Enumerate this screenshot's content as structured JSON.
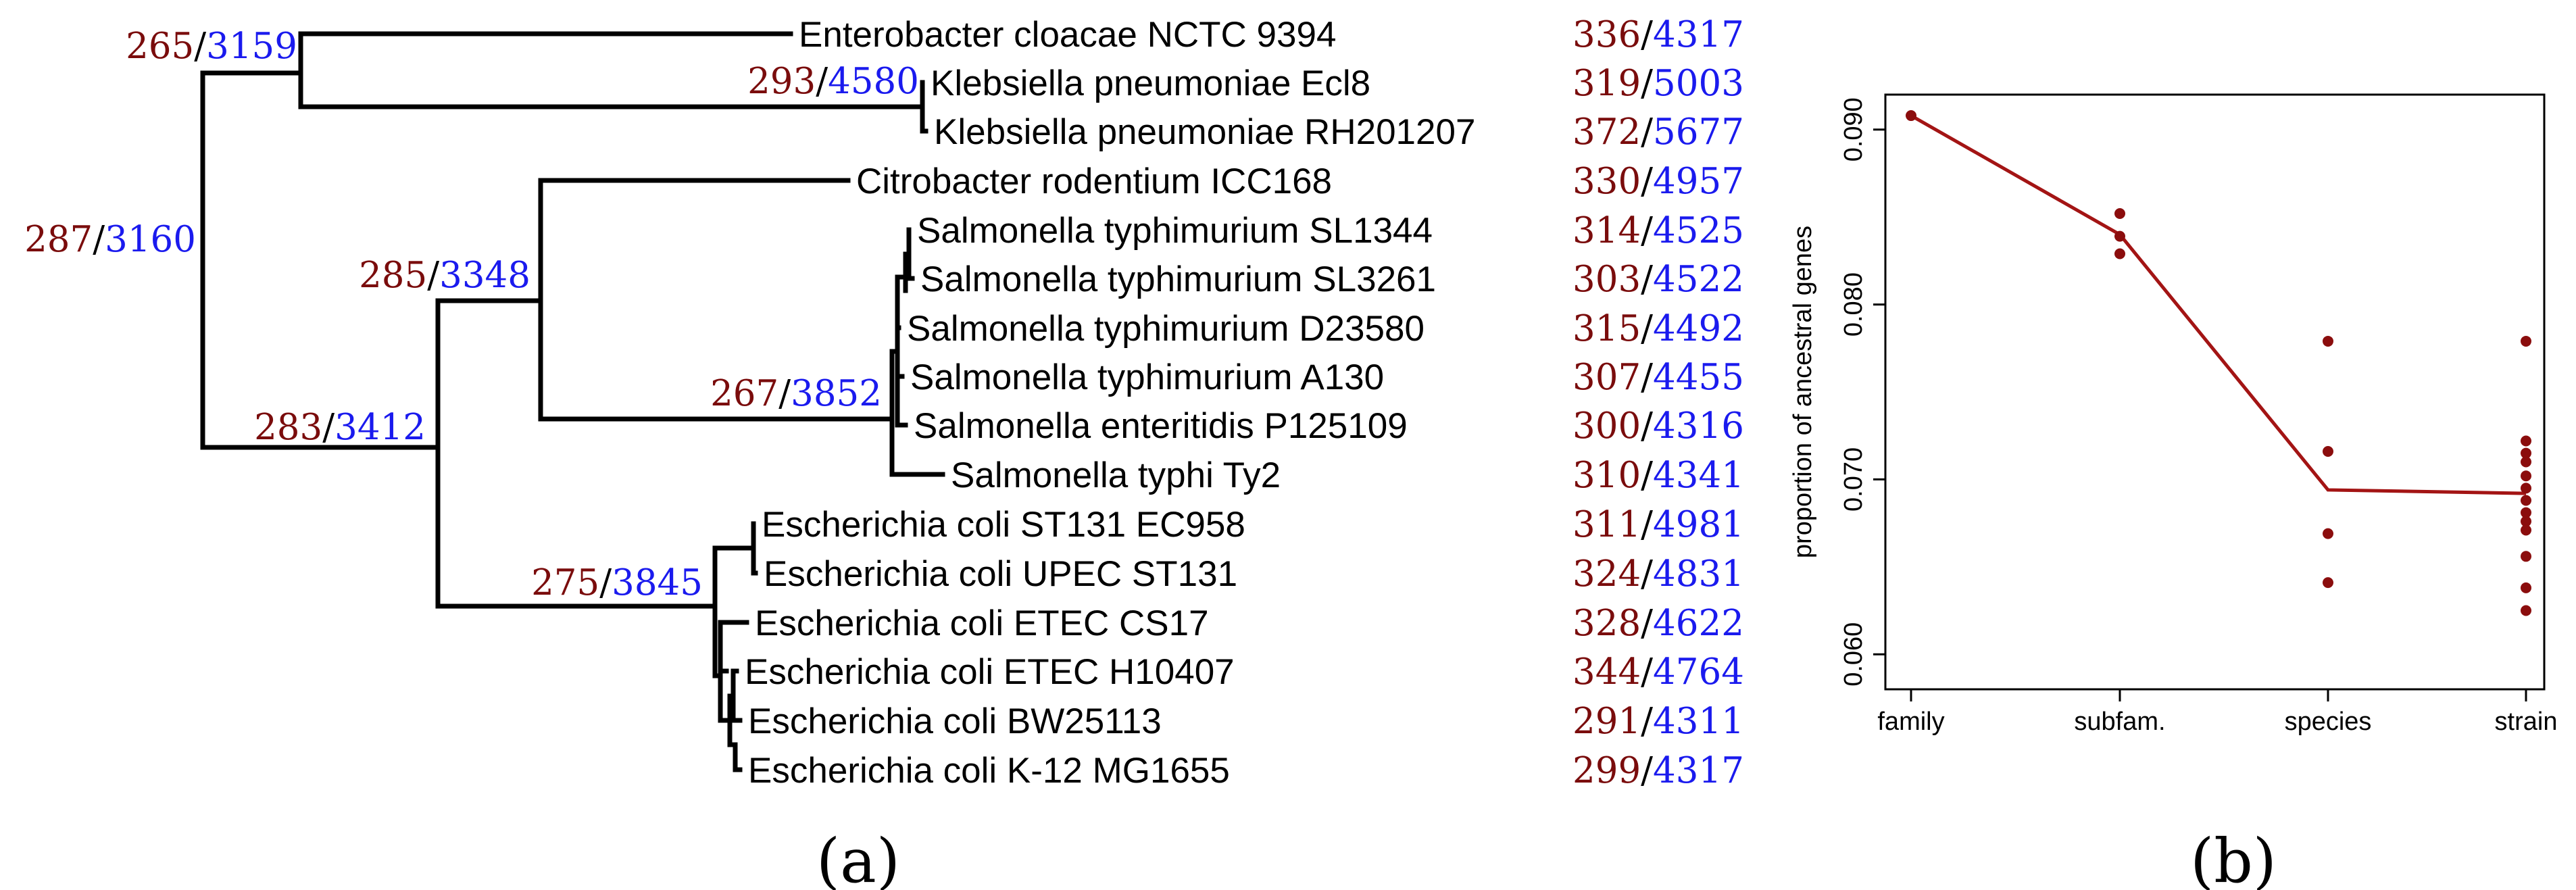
{
  "colors": {
    "ancestral": "#7a0c0c",
    "total": "#1a1aee",
    "line": "#a31414",
    "point": "#8b0d0d"
  },
  "panel_labels": {
    "a": "(a)",
    "b": "(b)"
  },
  "tree": {
    "leaves": [
      {
        "name": "Enterobacter cloacae NCTC 9394",
        "a": "336",
        "t": "4317"
      },
      {
        "name": "Klebsiella pneumoniae Ecl8",
        "a": "319",
        "t": "5003"
      },
      {
        "name": "Klebsiella pneumoniae RH201207",
        "a": "372",
        "t": "5677"
      },
      {
        "name": "Citrobacter rodentium ICC168",
        "a": "330",
        "t": "4957"
      },
      {
        "name": "Salmonella typhimurium SL1344",
        "a": "314",
        "t": "4525"
      },
      {
        "name": "Salmonella typhimurium SL3261",
        "a": "303",
        "t": "4522"
      },
      {
        "name": "Salmonella typhimurium D23580",
        "a": "315",
        "t": "4492"
      },
      {
        "name": "Salmonella typhimurium A130",
        "a": "307",
        "t": "4455"
      },
      {
        "name": "Salmonella enteritidis P125109",
        "a": "300",
        "t": "4316"
      },
      {
        "name": "Salmonella typhi Ty2",
        "a": "310",
        "t": "4341"
      },
      {
        "name": "Escherichia coli ST131 EC958",
        "a": "311",
        "t": "4981"
      },
      {
        "name": "Escherichia coli UPEC ST131",
        "a": "324",
        "t": "4831"
      },
      {
        "name": "Escherichia coli ETEC CS17",
        "a": "328",
        "t": "4622"
      },
      {
        "name": "Escherichia coli ETEC H10407",
        "a": "344",
        "t": "4764"
      },
      {
        "name": "Escherichia coli BW25113",
        "a": "291",
        "t": "4311"
      },
      {
        "name": "Escherichia coli K-12 MG1655",
        "a": "299",
        "t": "4317"
      }
    ],
    "internal_labels": [
      {
        "a": "287",
        "t": "3160"
      },
      {
        "a": "265",
        "t": "3159"
      },
      {
        "a": "293",
        "t": "4580"
      },
      {
        "a": "283",
        "t": "3412"
      },
      {
        "a": "285",
        "t": "3348"
      },
      {
        "a": "267",
        "t": "3852"
      },
      {
        "a": "275",
        "t": "3845"
      }
    ]
  },
  "chart_data": {
    "type": "scatter",
    "title": "",
    "xlabel": "",
    "ylabel": "proportion of ancestral genes",
    "categories": [
      "family",
      "subfam.",
      "species",
      "strain"
    ],
    "ylim": [
      0.058,
      0.092
    ],
    "yticks": [
      "0.060",
      "0.070",
      "0.080",
      "0.090"
    ],
    "ytick_values": [
      0.06,
      0.07,
      0.08,
      0.09
    ],
    "grid": false,
    "points": [
      {
        "category": "family",
        "values": [
          0.0908
        ]
      },
      {
        "category": "subfam.",
        "values": [
          0.0852,
          0.0839,
          0.0829
        ]
      },
      {
        "category": "species",
        "values": [
          0.0779,
          0.0716,
          0.0669,
          0.0641
        ]
      },
      {
        "category": "strain",
        "values": [
          0.0779,
          0.0722,
          0.0715,
          0.071,
          0.0702,
          0.0695,
          0.0688,
          0.0681,
          0.0676,
          0.0671,
          0.0656,
          0.0638,
          0.0625
        ]
      }
    ],
    "line": {
      "name": "",
      "values": [
        0.0908,
        0.084,
        0.0694,
        0.0692
      ]
    }
  }
}
